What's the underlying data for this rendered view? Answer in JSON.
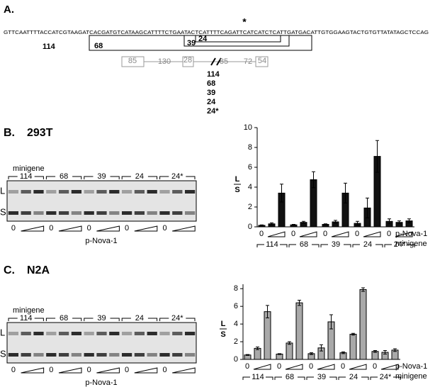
{
  "panel_a": {
    "label": "A.",
    "star": "*",
    "sequence": "GTTCAATTTTACCATCGTAAGATCACGATGTCATAAGCATTTTCTGAATACTCATTTTCAGATTCATCATCTCATTGATGACATTGTGGAAGTACTGTGTTATATAGCTCCAG",
    "regions": [
      "114",
      "68",
      "39",
      "24"
    ],
    "exon_labels": [
      "85",
      "130",
      "28",
      "85",
      "72",
      "54"
    ],
    "constructs": [
      "114",
      "68",
      "39",
      "24",
      "24*"
    ]
  },
  "panels": [
    {
      "label": "B.",
      "cell_line": "293T",
      "gel": {
        "header": "minigene",
        "lanes": [
          "114",
          "68",
          "39",
          "24",
          "24*"
        ],
        "bands": [
          "L",
          "S"
        ],
        "dose_zero": "0",
        "treatment": "p-Nova-1"
      }
    },
    {
      "label": "C.",
      "cell_line": "N2A",
      "gel": {
        "header": "minigene",
        "lanes": [
          "114",
          "68",
          "39",
          "24",
          "24*"
        ],
        "bands": [
          "L",
          "S"
        ],
        "dose_zero": "0",
        "treatment": "p-Nova-1"
      }
    }
  ],
  "chart_data": [
    {
      "type": "bar",
      "ylabel_top": "L",
      "ylabel_bottom": "S",
      "dose_zero": "0",
      "treatment": "p-Nova-1",
      "category_axis": "minigene",
      "categories": [
        "114",
        "68",
        "39",
        "24",
        "24*"
      ],
      "ylim": [
        0,
        10
      ],
      "yticks": [
        0,
        2,
        4,
        6,
        8,
        10
      ],
      "series": [
        {
          "color": "#111111",
          "values": [
            0.15,
            0.2,
            0.25,
            0.35,
            0.55
          ],
          "errors": [
            0.05,
            0.05,
            0.05,
            0.2,
            0.25
          ]
        },
        {
          "color": "#111111",
          "values": [
            0.3,
            0.45,
            0.5,
            1.9,
            0.45
          ],
          "errors": [
            0.1,
            0.1,
            0.15,
            1.0,
            0.15
          ]
        },
        {
          "color": "#111111",
          "values": [
            3.4,
            4.75,
            3.4,
            7.1,
            0.6
          ],
          "errors": [
            0.9,
            0.8,
            1.0,
            1.6,
            0.2
          ]
        }
      ]
    },
    {
      "type": "bar",
      "ylabel_top": "L",
      "ylabel_bottom": "S",
      "dose_zero": "0",
      "treatment": "p-Nova-1",
      "category_axis": "minigene",
      "categories": [
        "114",
        "68",
        "39",
        "24",
        "24*"
      ],
      "ylim": [
        0,
        8.5
      ],
      "yticks": [
        0,
        2,
        4,
        6,
        8
      ],
      "series": [
        {
          "color": "#a9a9a9",
          "values": [
            0.5,
            0.6,
            0.65,
            0.75,
            0.9
          ],
          "errors": [
            0.05,
            0.05,
            0.1,
            0.1,
            0.1
          ]
        },
        {
          "color": "#a9a9a9",
          "values": [
            1.25,
            1.85,
            1.3,
            2.85,
            0.8
          ],
          "errors": [
            0.15,
            0.15,
            0.35,
            0.1,
            0.2
          ]
        },
        {
          "color": "#a9a9a9",
          "values": [
            5.4,
            6.4,
            4.25,
            7.9,
            1.05
          ],
          "errors": [
            0.7,
            0.3,
            0.8,
            0.2,
            0.15
          ]
        }
      ]
    }
  ]
}
